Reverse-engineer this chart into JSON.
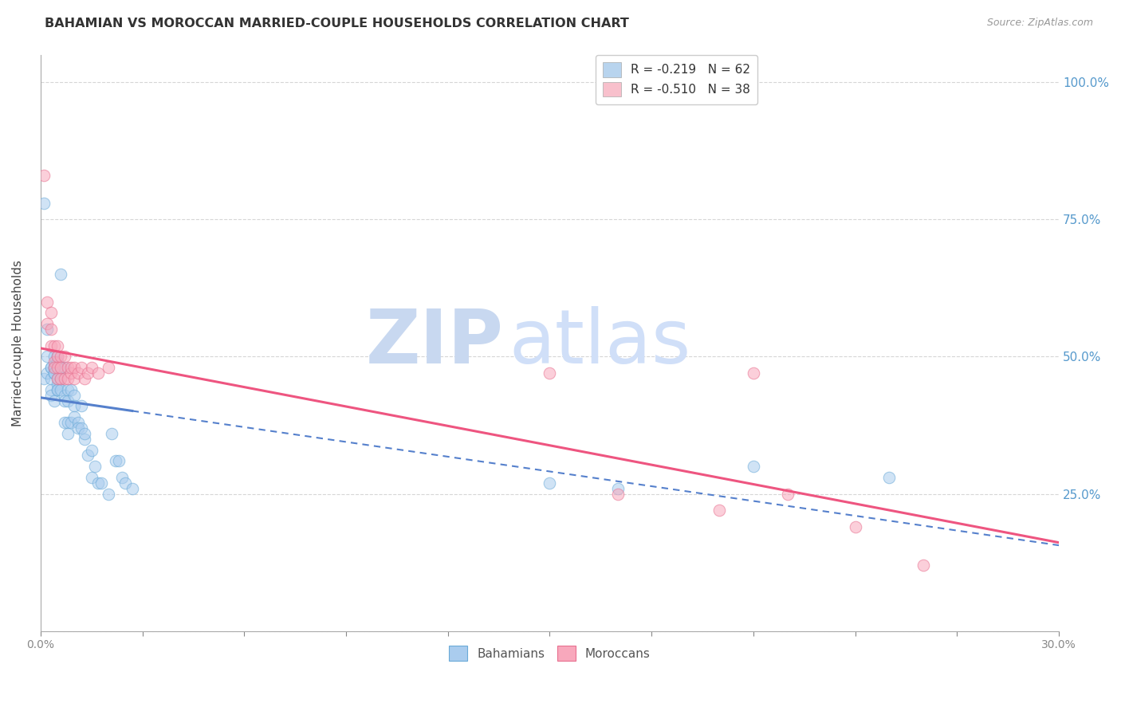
{
  "title": "BAHAMIAN VS MOROCCAN MARRIED-COUPLE HOUSEHOLDS CORRELATION CHART",
  "source": "Source: ZipAtlas.com",
  "ylabel": "Married-couple Households",
  "y_ticks": [
    0.0,
    0.25,
    0.5,
    0.75,
    1.0
  ],
  "y_tick_labels": [
    "",
    "25.0%",
    "50.0%",
    "75.0%",
    "100.0%"
  ],
  "x_min": 0.0,
  "x_max": 0.3,
  "y_min": 0.0,
  "y_max": 1.05,
  "legend_entries": [
    {
      "label": "R = -0.219   N = 62",
      "color": "#b8d4ee"
    },
    {
      "label": "R = -0.510   N = 38",
      "color": "#f8c0cc"
    }
  ],
  "bahamian_edge": "#6aaad8",
  "moroccan_edge": "#e87090",
  "bahamian_fill": "#aaccee",
  "moroccan_fill": "#f8a8bc",
  "line_blue": "#5580cc",
  "line_pink": "#ee5580",
  "watermark_zip": "#c8d8f0",
  "watermark_atlas": "#d0dff8",
  "title_fontsize": 11.5,
  "source_fontsize": 9,
  "scatter_size": 110,
  "scatter_alpha": 0.55,
  "bahamians_x": [
    0.001,
    0.001,
    0.002,
    0.002,
    0.002,
    0.003,
    0.003,
    0.003,
    0.003,
    0.003,
    0.004,
    0.004,
    0.004,
    0.004,
    0.004,
    0.004,
    0.005,
    0.005,
    0.005,
    0.005,
    0.005,
    0.005,
    0.006,
    0.006,
    0.006,
    0.006,
    0.007,
    0.007,
    0.007,
    0.007,
    0.008,
    0.008,
    0.008,
    0.008,
    0.009,
    0.009,
    0.01,
    0.01,
    0.01,
    0.011,
    0.011,
    0.012,
    0.012,
    0.013,
    0.013,
    0.014,
    0.015,
    0.015,
    0.016,
    0.017,
    0.018,
    0.02,
    0.021,
    0.022,
    0.023,
    0.024,
    0.025,
    0.027,
    0.15,
    0.17,
    0.21,
    0.25
  ],
  "bahamians_y": [
    0.78,
    0.46,
    0.47,
    0.55,
    0.5,
    0.48,
    0.44,
    0.48,
    0.46,
    0.43,
    0.5,
    0.48,
    0.47,
    0.42,
    0.48,
    0.47,
    0.45,
    0.5,
    0.49,
    0.44,
    0.46,
    0.44,
    0.65,
    0.48,
    0.46,
    0.44,
    0.48,
    0.43,
    0.42,
    0.38,
    0.44,
    0.42,
    0.38,
    0.36,
    0.44,
    0.38,
    0.43,
    0.41,
    0.39,
    0.38,
    0.37,
    0.41,
    0.37,
    0.35,
    0.36,
    0.32,
    0.33,
    0.28,
    0.3,
    0.27,
    0.27,
    0.25,
    0.36,
    0.31,
    0.31,
    0.28,
    0.27,
    0.26,
    0.27,
    0.26,
    0.3,
    0.28
  ],
  "moroccans_x": [
    0.001,
    0.002,
    0.002,
    0.003,
    0.003,
    0.003,
    0.004,
    0.004,
    0.004,
    0.005,
    0.005,
    0.005,
    0.005,
    0.006,
    0.006,
    0.006,
    0.007,
    0.007,
    0.008,
    0.008,
    0.009,
    0.009,
    0.01,
    0.01,
    0.011,
    0.012,
    0.013,
    0.014,
    0.015,
    0.017,
    0.02,
    0.15,
    0.17,
    0.2,
    0.21,
    0.22,
    0.24,
    0.26
  ],
  "moroccans_y": [
    0.83,
    0.6,
    0.56,
    0.58,
    0.55,
    0.52,
    0.52,
    0.49,
    0.48,
    0.52,
    0.48,
    0.46,
    0.5,
    0.5,
    0.46,
    0.48,
    0.5,
    0.46,
    0.48,
    0.46,
    0.47,
    0.48,
    0.48,
    0.46,
    0.47,
    0.48,
    0.46,
    0.47,
    0.48,
    0.47,
    0.48,
    0.47,
    0.25,
    0.22,
    0.47,
    0.25,
    0.19,
    0.12
  ],
  "bg_color": "#ffffff",
  "grid_color": "#bbbbbb",
  "tick_color": "#5599cc"
}
